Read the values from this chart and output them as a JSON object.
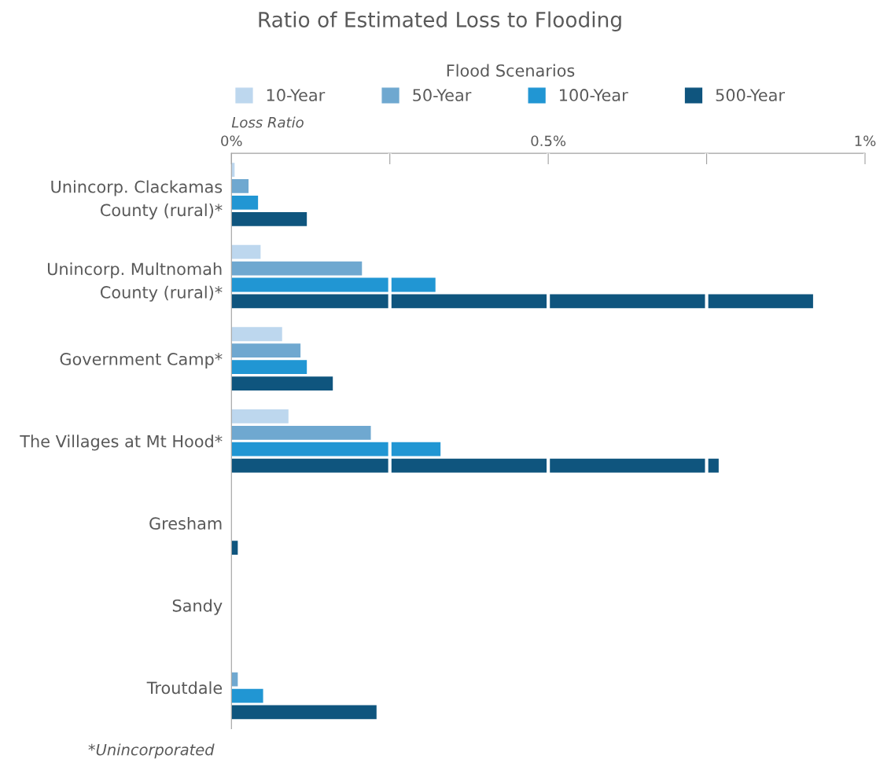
{
  "chart_data": {
    "type": "bar",
    "orientation": "horizontal",
    "title": "Ratio of Estimated Loss to Flooding",
    "xlabel": "Loss Ratio",
    "legend_title": "Flood Scenarios",
    "legend": "top",
    "categories": [
      "Unincorp. Clackamas\nCounty (rural)*",
      "Unincorp. Multnomah\nCounty (rural)*",
      "Government Camp*",
      "The Villages at Mt Hood*",
      "Gresham",
      "Sandy",
      "Troutdale"
    ],
    "series": [
      {
        "name": "10-Year",
        "color": "#bdd7ee",
        "values": [
          0.005,
          0.046,
          0.08,
          0.09,
          0,
          0,
          0
        ]
      },
      {
        "name": "50-Year",
        "color": "#6fa8d0",
        "values": [
          0.027,
          0.206,
          0.109,
          0.22,
          0,
          0,
          0.01
        ]
      },
      {
        "name": "100-Year",
        "color": "#2196d3",
        "values": [
          0.042,
          0.322,
          0.119,
          0.33,
          0,
          0,
          0.05
        ]
      },
      {
        "name": "500-Year",
        "color": "#0f557e",
        "values": [
          0.119,
          0.918,
          0.16,
          0.769,
          0.01,
          0,
          0.229
        ]
      }
    ],
    "xlim": [
      0,
      1
    ],
    "xticks": [
      {
        "value": 0,
        "label": "0%"
      },
      {
        "value": 0.25,
        "label": null
      },
      {
        "value": 0.5,
        "label": "0.5%"
      },
      {
        "value": 0.75,
        "label": null
      },
      {
        "value": 1,
        "label": "1%"
      }
    ],
    "grid": "x",
    "annotations": [
      "*Unincorporated"
    ]
  }
}
